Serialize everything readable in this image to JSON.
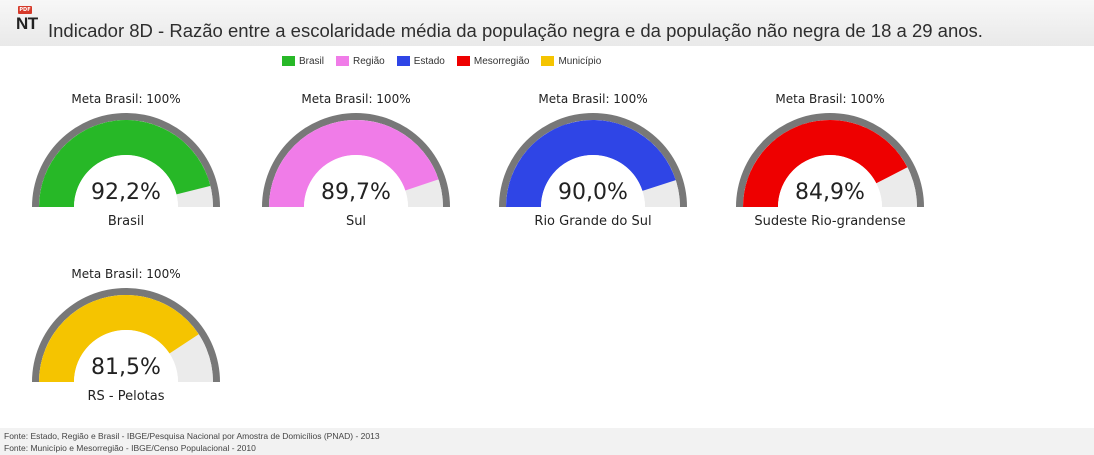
{
  "header": {
    "icon_badge": "PDF",
    "icon_letters": "NT",
    "title": "Indicador 8D - Razão entre a escolaridade média da população negra e da população não negra de 18 a 29 anos."
  },
  "legend": [
    {
      "label": "Brasil",
      "color": "#27b827"
    },
    {
      "label": "Região",
      "color": "#f07ce8"
    },
    {
      "label": "Estado",
      "color": "#2f45e6"
    },
    {
      "label": "Mesorregião",
      "color": "#ee0000"
    },
    {
      "label": "Município",
      "color": "#f5c400"
    }
  ],
  "chart_data": {
    "type": "gauge",
    "range": [
      0,
      100
    ],
    "unit": "%",
    "gauges": [
      {
        "meta": "Meta Brasil: 100%",
        "value": 92.2,
        "value_label": "92,2%",
        "name": "Brasil",
        "color": "#27b827"
      },
      {
        "meta": "Meta Brasil: 100%",
        "value": 89.7,
        "value_label": "89,7%",
        "name": "Sul",
        "color": "#f07ce8"
      },
      {
        "meta": "Meta Brasil: 100%",
        "value": 90.0,
        "value_label": "90,0%",
        "name": "Rio Grande do Sul",
        "color": "#2f45e6"
      },
      {
        "meta": "Meta Brasil: 100%",
        "value": 84.9,
        "value_label": "84,9%",
        "name": "Sudeste Rio-grandense",
        "color": "#ee0000"
      },
      {
        "meta": "Meta Brasil: 100%",
        "value": 81.5,
        "value_label": "81,5%",
        "name": "RS - Pelotas",
        "color": "#f5c400"
      }
    ]
  },
  "footer": {
    "line1": "Fonte: Estado, Região e Brasil - IBGE/Pesquisa Nacional por Amostra de Domicílios (PNAD) - 2013",
    "line2": "Fonte: Município e Mesorregião - IBGE/Censo Populacional - 2010"
  }
}
